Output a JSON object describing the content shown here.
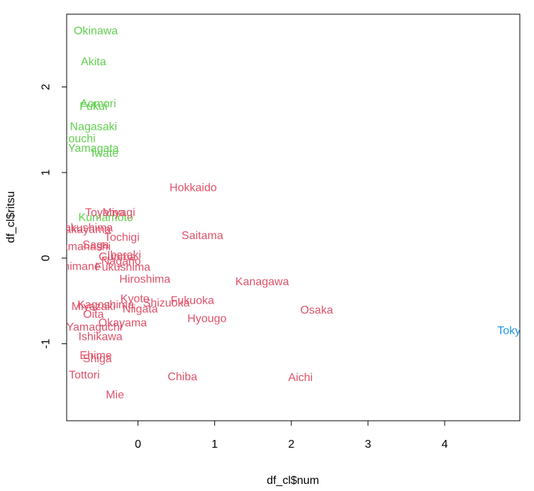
{
  "chart_data": {
    "type": "scatter",
    "title": "",
    "xlabel": "df_cl$num",
    "ylabel": "df_cl$ritsu",
    "xlim": [
      -0.93,
      4.98
    ],
    "ylim": [
      -1.9,
      2.85
    ],
    "x_ticks": [
      "0",
      "1",
      "2",
      "3",
      "4"
    ],
    "x_tick_values": [
      0,
      1,
      2,
      3,
      4
    ],
    "y_ticks": [
      "-1",
      "0",
      "1",
      "2"
    ],
    "y_tick_values": [
      -1,
      0,
      1,
      2
    ],
    "grid": false,
    "legend": "none",
    "colors": {
      "cluster_1": "#DF536B",
      "cluster_2": "#61D04F",
      "cluster_3": "#2297E6"
    },
    "series": [
      {
        "cluster": 2,
        "color": "#61D04F",
        "points": [
          {
            "label": "Okinawa",
            "x": -0.55,
            "y": 2.65
          },
          {
            "label": "Akita",
            "x": -0.58,
            "y": 2.29
          },
          {
            "label": "Aomori",
            "x": -0.52,
            "y": 1.8
          },
          {
            "label": "Fukui",
            "x": -0.58,
            "y": 1.77
          },
          {
            "label": "Nagasaki",
            "x": -0.58,
            "y": 1.53
          },
          {
            "label": "Kouchi",
            "x": -0.78,
            "y": 1.39
          },
          {
            "label": "Yamagata",
            "x": -0.58,
            "y": 1.28
          },
          {
            "label": "Iwate",
            "x": -0.43,
            "y": 1.22
          },
          {
            "label": "Kumamoto",
            "x": -0.42,
            "y": 0.47
          }
        ]
      },
      {
        "cluster": 1,
        "color": "#DF536B",
        "points": [
          {
            "label": "Hokkaido",
            "x": 0.72,
            "y": 0.82
          },
          {
            "label": "Toyama",
            "x": -0.43,
            "y": 0.53
          },
          {
            "label": "Miyagi",
            "x": -0.25,
            "y": 0.53
          },
          {
            "label": "Tokushima",
            "x": -0.68,
            "y": 0.35
          },
          {
            "label": "Wakayama",
            "x": -0.72,
            "y": 0.33
          },
          {
            "label": "Tochigi",
            "x": -0.21,
            "y": 0.24
          },
          {
            "label": "Saitama",
            "x": 0.84,
            "y": 0.26
          },
          {
            "label": "Yamanashi",
            "x": -0.72,
            "y": 0.13
          },
          {
            "label": "Saga",
            "x": -0.55,
            "y": 0.15
          },
          {
            "label": "Gunma",
            "x": -0.27,
            "y": 0.01
          },
          {
            "label": "Ibaraki",
            "x": -0.18,
            "y": 0.03
          },
          {
            "label": "Nagano",
            "x": -0.22,
            "y": -0.04
          },
          {
            "label": "Shimane",
            "x": -0.78,
            "y": -0.1
          },
          {
            "label": "Fukushima",
            "x": -0.2,
            "y": -0.11
          },
          {
            "label": "Hiroshima",
            "x": 0.09,
            "y": -0.25
          },
          {
            "label": "Kanagawa",
            "x": 1.62,
            "y": -0.28
          },
          {
            "label": "Fukuoka",
            "x": 0.71,
            "y": -0.5
          },
          {
            "label": "Kyoto",
            "x": -0.04,
            "y": -0.48
          },
          {
            "label": "Shizuoka",
            "x": 0.37,
            "y": -0.53
          },
          {
            "label": "Kagoshima",
            "x": -0.42,
            "y": -0.55
          },
          {
            "label": "Miyazaki",
            "x": -0.58,
            "y": -0.57
          },
          {
            "label": "Niigata",
            "x": 0.03,
            "y": -0.6
          },
          {
            "label": "Osaka",
            "x": 2.33,
            "y": -0.61
          },
          {
            "label": "Oita",
            "x": -0.58,
            "y": -0.66
          },
          {
            "label": "Hyougo",
            "x": 0.9,
            "y": -0.71
          },
          {
            "label": "Okayama",
            "x": -0.2,
            "y": -0.76
          },
          {
            "label": "Yamaguchi",
            "x": -0.57,
            "y": -0.81
          },
          {
            "label": "Ishikawa",
            "x": -0.49,
            "y": -0.92
          },
          {
            "label": "Ehime",
            "x": -0.55,
            "y": -1.14
          },
          {
            "label": "Shiga",
            "x": -0.53,
            "y": -1.18
          },
          {
            "label": "Tottori",
            "x": -0.7,
            "y": -1.37
          },
          {
            "label": "Chiba",
            "x": 0.58,
            "y": -1.39
          },
          {
            "label": "Aichi",
            "x": 2.12,
            "y": -1.4
          },
          {
            "label": "Mie",
            "x": -0.3,
            "y": -1.6
          }
        ]
      },
      {
        "cluster": 3,
        "color": "#2297E6",
        "points": [
          {
            "label": "Tokyo",
            "x": 4.88,
            "y": -0.85
          }
        ]
      }
    ]
  }
}
